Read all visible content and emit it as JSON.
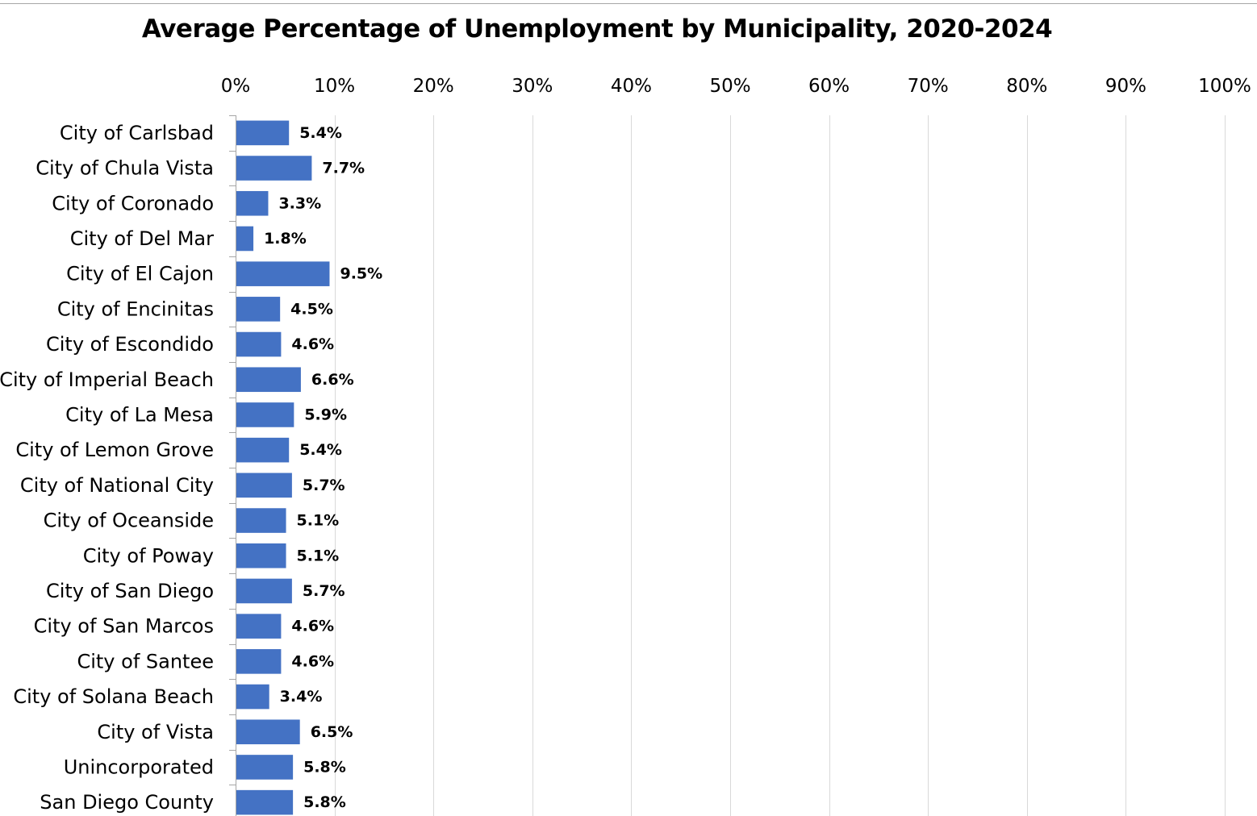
{
  "chart_data": {
    "type": "bar",
    "orientation": "horizontal",
    "title": "Average Percentage of Unemployment by Municipality, 2020-2024",
    "xlabel": "",
    "ylabel": "",
    "xlim": [
      0,
      100
    ],
    "x_ticks": [
      "0%",
      "10%",
      "20%",
      "30%",
      "40%",
      "50%",
      "60%",
      "70%",
      "80%",
      "90%",
      "100%"
    ],
    "x_axis_position": "top",
    "grid": true,
    "legend": "none",
    "bar_color": "#4472c4",
    "categories": [
      "City of Carlsbad",
      "City of Chula Vista",
      "City of Coronado",
      "City of Del Mar",
      "City of El Cajon",
      "City of Encinitas",
      "City of Escondido",
      "City of Imperial Beach",
      "City of La Mesa",
      "City of Lemon Grove",
      "City of National City",
      "City of Oceanside",
      "City of Poway",
      "City of San Diego",
      "City of San Marcos",
      "City of Santee",
      "City of Solana Beach",
      "City of Vista",
      "Unincorporated",
      "San Diego County"
    ],
    "values": [
      5.4,
      7.7,
      3.3,
      1.8,
      9.5,
      4.5,
      4.6,
      6.6,
      5.9,
      5.4,
      5.7,
      5.1,
      5.1,
      5.7,
      4.6,
      4.6,
      3.4,
      6.5,
      5.8,
      5.8
    ],
    "data_labels": [
      "5.4%",
      "7.7%",
      "3.3%",
      "1.8%",
      "9.5%",
      "4.5%",
      "4.6%",
      "6.6%",
      "5.9%",
      "5.4%",
      "5.7%",
      "5.1%",
      "5.1%",
      "5.7%",
      "4.6%",
      "4.6%",
      "3.4%",
      "6.5%",
      "5.8%",
      "5.8%"
    ]
  }
}
